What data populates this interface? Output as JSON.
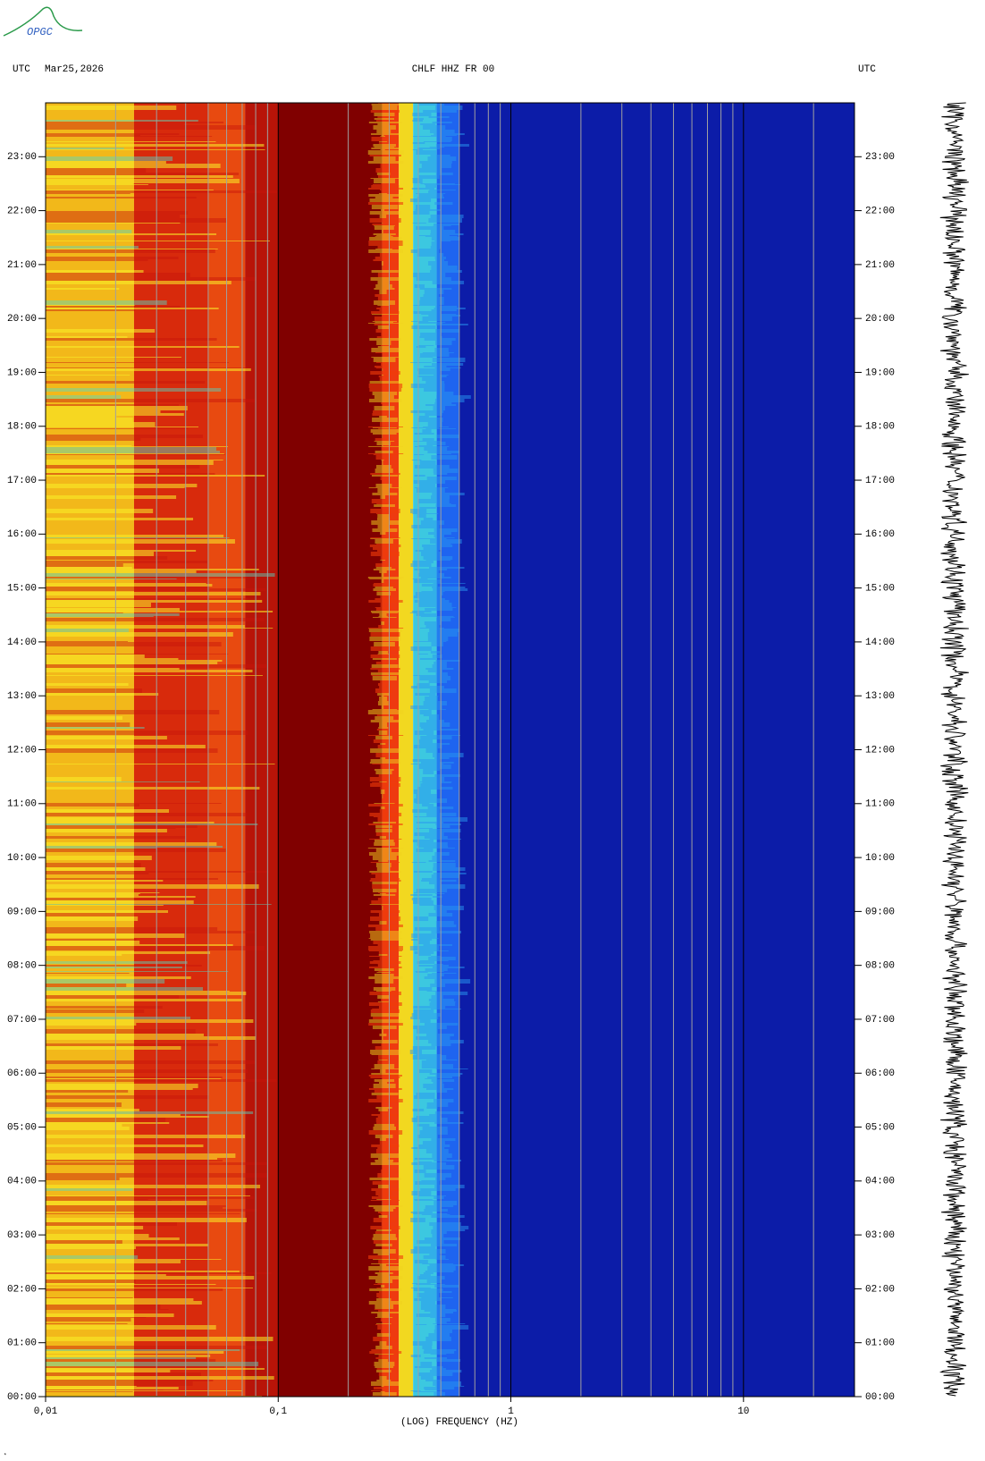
{
  "logo": "OPGC",
  "chart_data": {
    "type": "spectrogram",
    "title": "CHLF HHZ FR 00",
    "date": "Mar25,2026",
    "left_label": "UTC",
    "right_label": "UTC",
    "xlabel": "(LOG) FREQUENCY (HZ)",
    "xscale": "log",
    "xlim": [
      0.01,
      30
    ],
    "xticks": [
      {
        "value": 0.01,
        "label": "0,01"
      },
      {
        "value": 0.1,
        "label": "0,1"
      },
      1,
      10
    ],
    "xminor": [
      0.02,
      0.03,
      0.04,
      0.05,
      0.06,
      0.07,
      0.08,
      0.09,
      0.2,
      0.3,
      0.4,
      0.5,
      0.6,
      0.7,
      0.8,
      0.9,
      2,
      3,
      4,
      5,
      6,
      7,
      8,
      9,
      20
    ],
    "ylim": [
      0,
      24
    ],
    "yticks": [
      {
        "value": 0,
        "label": "00:00"
      },
      {
        "value": 1,
        "label": "01:00"
      },
      {
        "value": 2,
        "label": "02:00"
      },
      {
        "value": 3,
        "label": "03:00"
      },
      {
        "value": 4,
        "label": "04:00"
      },
      {
        "value": 5,
        "label": "05:00"
      },
      {
        "value": 6,
        "label": "06:00"
      },
      {
        "value": 7,
        "label": "07:00"
      },
      {
        "value": 8,
        "label": "08:00"
      },
      {
        "value": 9,
        "label": "09:00"
      },
      {
        "value": 10,
        "label": "10:00"
      },
      {
        "value": 11,
        "label": "11:00"
      },
      {
        "value": 12,
        "label": "12:00"
      },
      {
        "value": 13,
        "label": "13:00"
      },
      {
        "value": 14,
        "label": "14:00"
      },
      {
        "value": 15,
        "label": "15:00"
      },
      {
        "value": 16,
        "label": "16:00"
      },
      {
        "value": 17,
        "label": "17:00"
      },
      {
        "value": 18,
        "label": "18:00"
      },
      {
        "value": 19,
        "label": "19:00"
      },
      {
        "value": 20,
        "label": "20:00"
      },
      {
        "value": 21,
        "label": "21:00"
      },
      {
        "value": 22,
        "label": "22:00"
      },
      {
        "value": 23,
        "label": "23:00"
      }
    ],
    "zones": [
      {
        "xmin": 0.01,
        "xmax": 0.024,
        "color": "#f2b81a"
      },
      {
        "xmin": 0.024,
        "xmax": 0.05,
        "color": "#d82a0c"
      },
      {
        "xmin": 0.05,
        "xmax": 0.072,
        "color": "#e84a10"
      },
      {
        "xmin": 0.072,
        "xmax": 0.1,
        "color": "#b81408"
      },
      {
        "xmin": 0.1,
        "xmax": 0.28,
        "color": "#800000"
      },
      {
        "xmin": 0.28,
        "xmax": 0.33,
        "color": "#ee3a10"
      },
      {
        "xmin": 0.33,
        "xmax": 0.38,
        "color": "#f2d820"
      },
      {
        "xmin": 0.38,
        "xmax": 0.48,
        "color": "#3cc8e0"
      },
      {
        "xmin": 0.48,
        "xmax": 0.6,
        "color": "#1e64f0"
      },
      {
        "xmin": 0.6,
        "xmax": 30,
        "color": "#0c1ca8"
      }
    ],
    "grid_color": "#a0a0a0"
  }
}
